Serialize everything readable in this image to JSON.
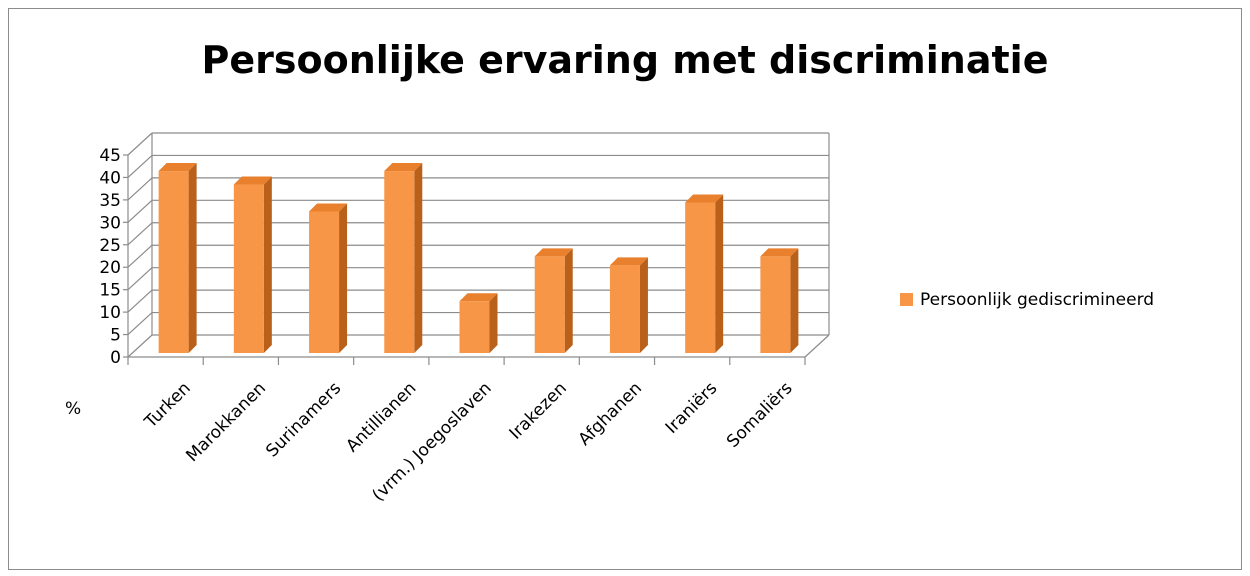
{
  "chart_data": {
    "type": "bar",
    "title": "Persoonlijke ervaring met discriminatie",
    "ylabel": "%",
    "xlabel": "",
    "categories": [
      "Turken",
      "Marokkanen",
      "Surinamers",
      "Antillianen",
      "(vrm.) Joegoslaven",
      "Irakezen",
      "Afghanen",
      "Iraniërs",
      "Somaliërs"
    ],
    "series": [
      {
        "name": "Persoonlijk gediscrimineerd",
        "values": [
          41,
          38,
          32,
          41,
          12,
          22,
          20,
          34,
          22
        ],
        "color": "#F79646"
      }
    ],
    "ylim": [
      0,
      45
    ],
    "yticks": [
      0,
      5,
      10,
      15,
      20,
      25,
      30,
      35,
      40,
      45
    ],
    "grid": true,
    "legend": "right",
    "style": "3d-column"
  }
}
